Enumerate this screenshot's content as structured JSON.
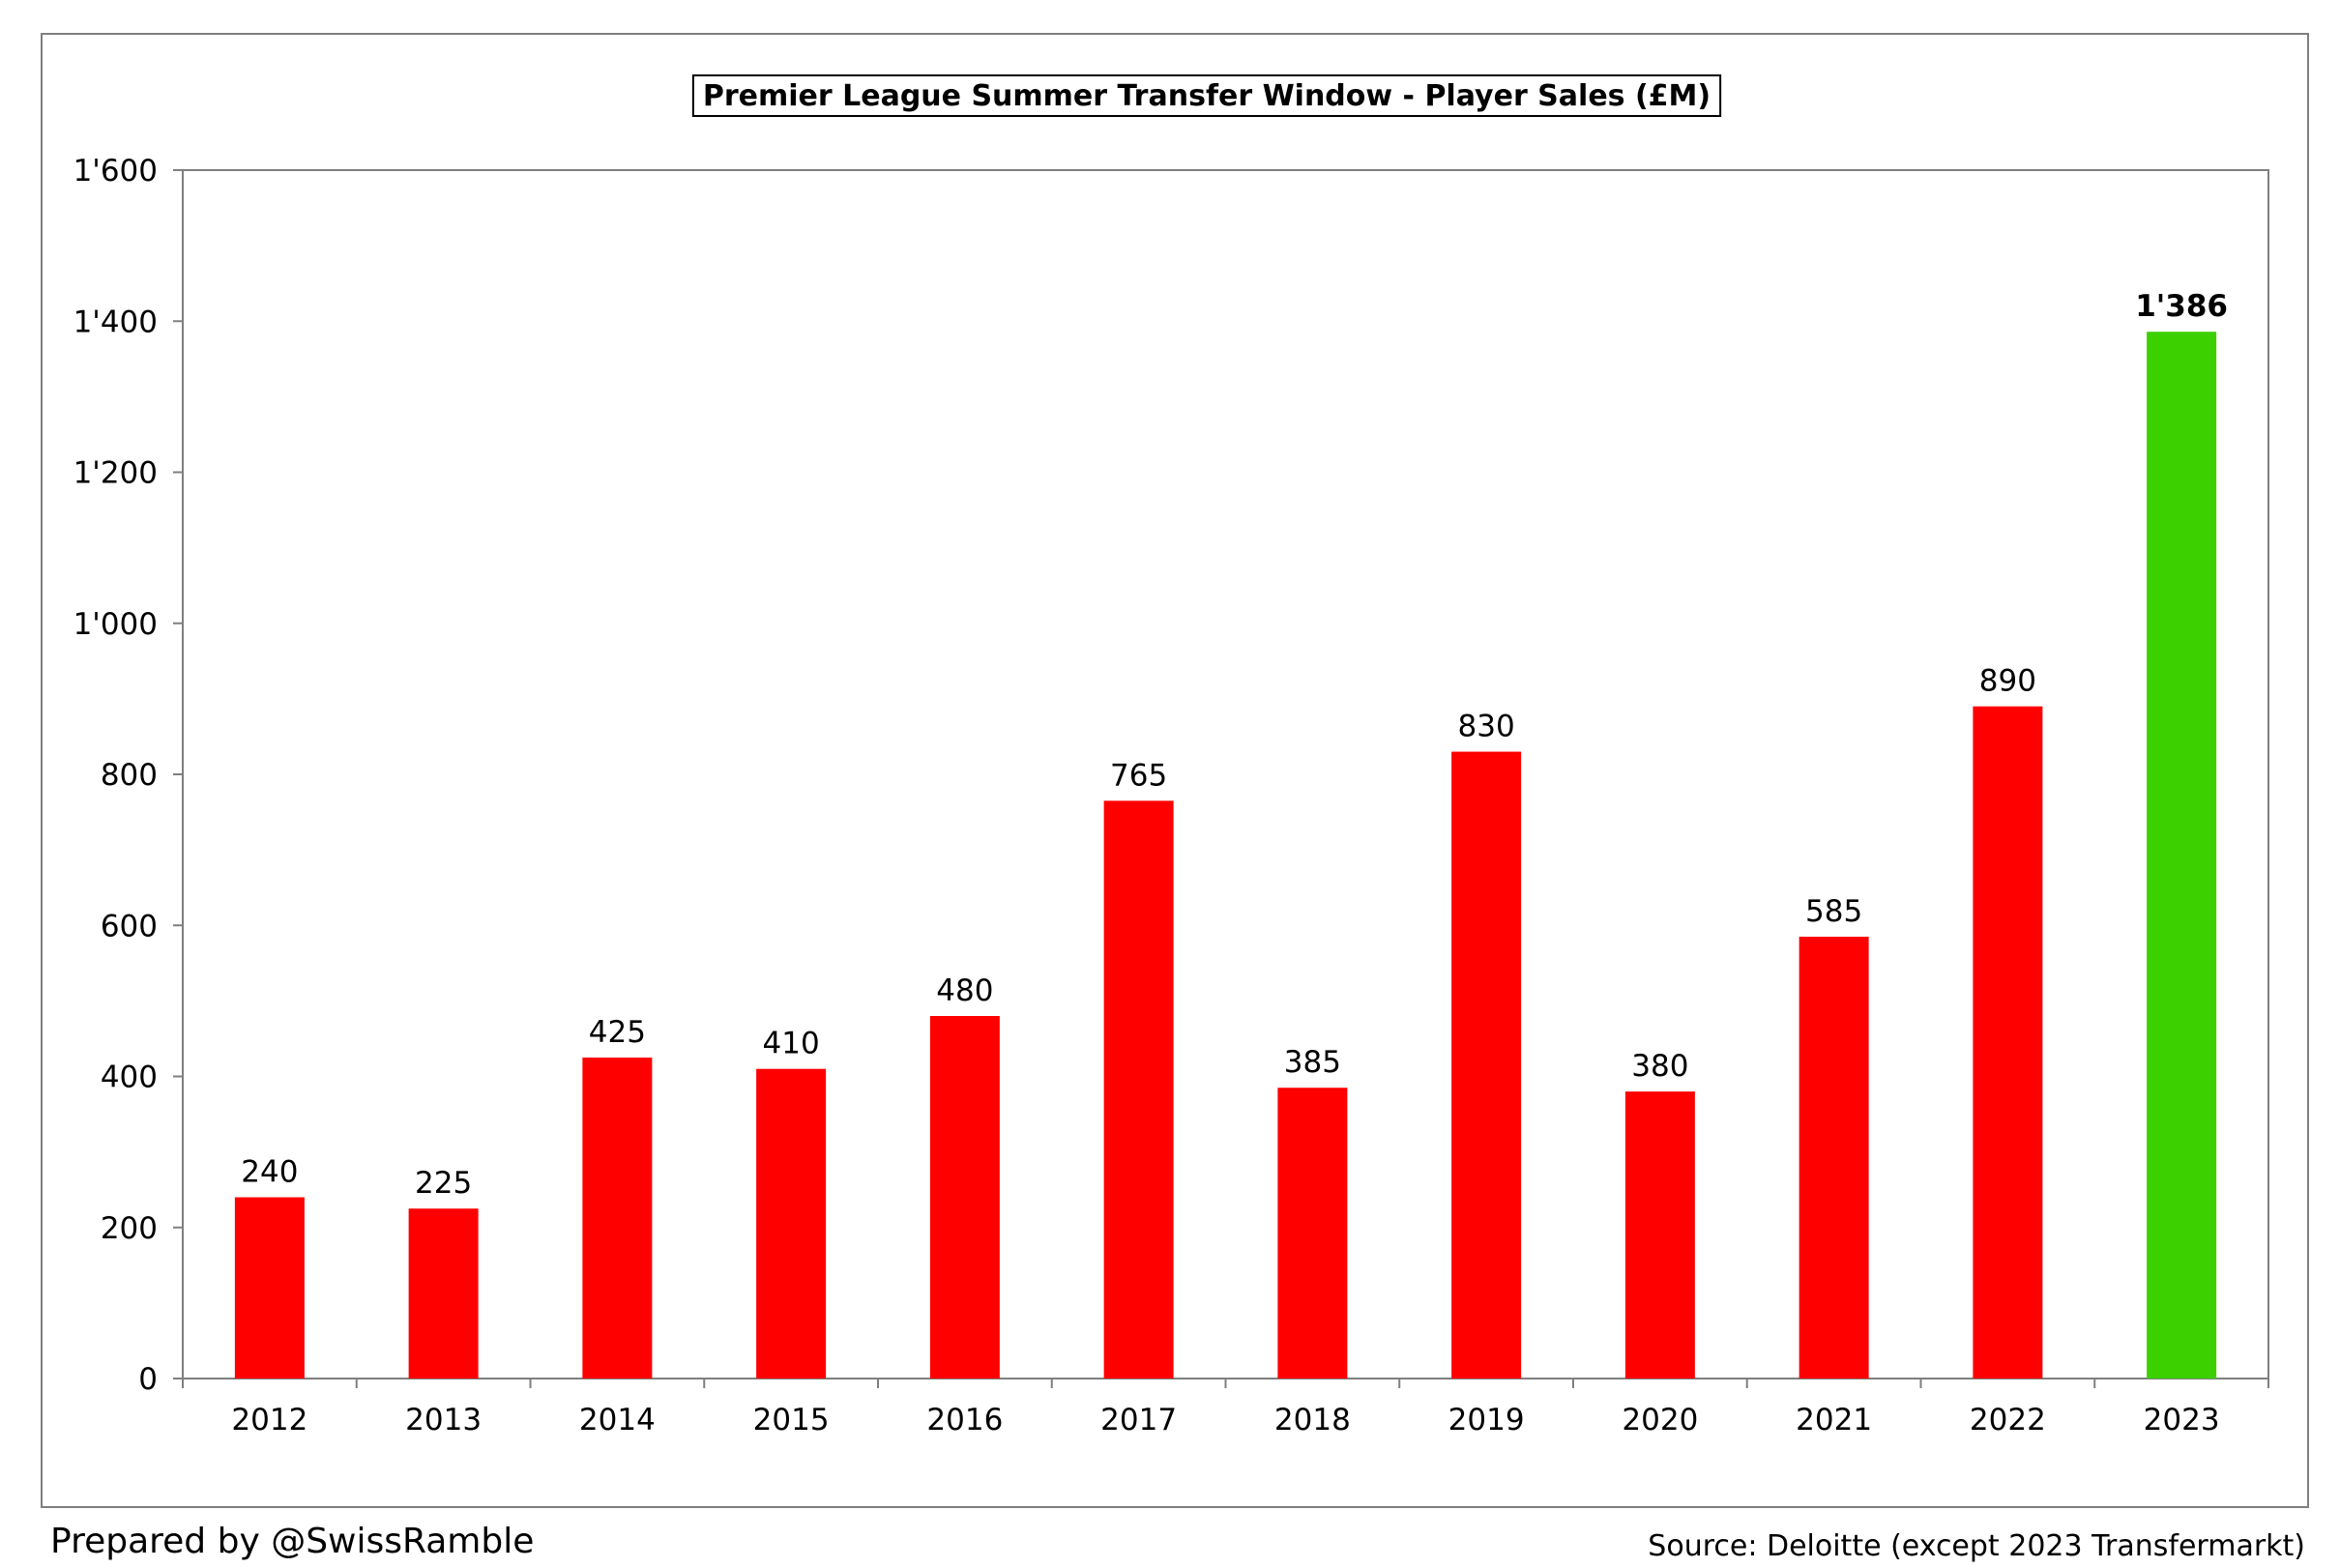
{
  "chart_data": {
    "type": "bar",
    "title": "Premier League Summer Transfer Window - Player Sales (£M)",
    "xlabel": "",
    "ylabel": "",
    "categories": [
      "2012",
      "2013",
      "2014",
      "2015",
      "2016",
      "2017",
      "2018",
      "2019",
      "2020",
      "2021",
      "2022",
      "2023"
    ],
    "values": [
      240,
      225,
      425,
      410,
      480,
      765,
      385,
      830,
      380,
      585,
      890,
      1386
    ],
    "value_labels": [
      "240",
      "225",
      "425",
      "410",
      "480",
      "765",
      "385",
      "830",
      "380",
      "585",
      "890",
      "1'386"
    ],
    "ylim": [
      0,
      1600
    ],
    "yticks": [
      0,
      200,
      400,
      600,
      800,
      1000,
      1200,
      1400,
      1600
    ],
    "ytick_labels": [
      "0",
      "200",
      "400",
      "600",
      "800",
      "1'000",
      "1'200",
      "1'400",
      "1'600"
    ],
    "grid": false,
    "bar_colors": [
      "#ff0000",
      "#ff0000",
      "#ff0000",
      "#ff0000",
      "#ff0000",
      "#ff0000",
      "#ff0000",
      "#ff0000",
      "#ff0000",
      "#ff0000",
      "#ff0000",
      "#3cd000"
    ],
    "highlight_category": "2023"
  },
  "footer": {
    "prepared_by": "Prepared by @SwissRamble",
    "source": "Source: Deloitte (except 2023 Transfermarkt)"
  },
  "colors": {
    "bar_default": "#ff0000",
    "bar_highlight": "#3cd000",
    "axis": "#7f7f7f",
    "frame": "#7f7f7f"
  }
}
